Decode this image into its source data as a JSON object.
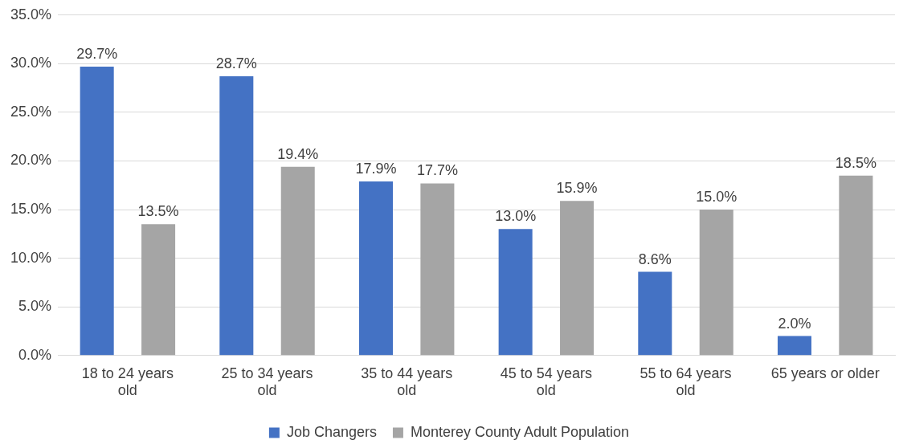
{
  "chart_data": {
    "type": "bar",
    "categories": [
      "18 to 24 years old",
      "25 to 34 years old",
      "35 to 44 years old",
      "45 to 54 years old",
      "55 to 64 years old",
      "65 years or older"
    ],
    "series": [
      {
        "name": "Job Changers",
        "color": "#4472c4",
        "values": [
          29.7,
          28.7,
          17.9,
          13.0,
          8.6,
          2.0
        ],
        "value_labels": [
          "29.7%",
          "28.7%",
          "17.9%",
          "13.0%",
          "8.6%",
          "2.0%"
        ]
      },
      {
        "name": "Monterey County Adult Population",
        "color": "#a5a5a5",
        "values": [
          13.5,
          19.4,
          17.7,
          15.9,
          15.0,
          18.5
        ],
        "value_labels": [
          "13.5%",
          "19.4%",
          "17.7%",
          "15.9%",
          "15.0%",
          "18.5%"
        ]
      }
    ],
    "ylim": [
      0,
      35
    ],
    "yticks": [
      {
        "value": 0,
        "label": "0.0%"
      },
      {
        "value": 5,
        "label": "5.0%"
      },
      {
        "value": 10,
        "label": "10.0%"
      },
      {
        "value": 15,
        "label": "15.0%"
      },
      {
        "value": 20,
        "label": "20.0%"
      },
      {
        "value": 25,
        "label": "25.0%"
      },
      {
        "value": 30,
        "label": "30.0%"
      },
      {
        "value": 35,
        "label": "35.0%"
      }
    ],
    "grid": "y",
    "legend": "bottom"
  }
}
